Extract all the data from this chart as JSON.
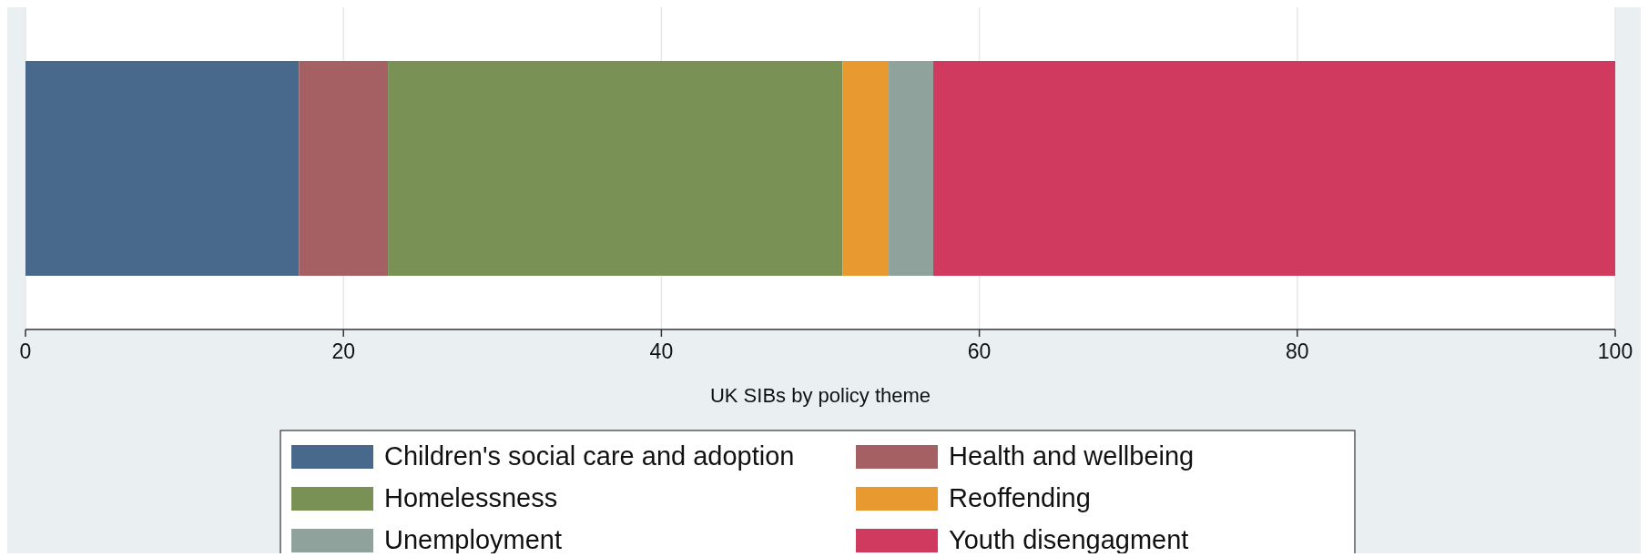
{
  "chart_data": {
    "type": "bar",
    "orientation": "horizontal",
    "stacked": true,
    "categories": [
      null
    ],
    "xlabel": "UK SIBs by policy theme",
    "xlim": [
      0,
      100
    ],
    "xticks": [
      0,
      20,
      40,
      60,
      80,
      100
    ],
    "grid": "x",
    "legend": "bottom",
    "series": [
      {
        "name": "Children's social care and adoption",
        "color": "#48698c",
        "values": [
          17.2
        ]
      },
      {
        "name": "Health and wellbeing",
        "color": "#a56063",
        "values": [
          5.6
        ]
      },
      {
        "name": "Homelessness",
        "color": "#7a9156",
        "values": [
          28.6
        ]
      },
      {
        "name": "Reoffending",
        "color": "#e8992f",
        "values": [
          2.9
        ]
      },
      {
        "name": "Unemployment",
        "color": "#8fa39c",
        "values": [
          2.8
        ]
      },
      {
        "name": "Youth disengagment",
        "color": "#cf3a5e",
        "values": [
          42.9
        ]
      }
    ]
  }
}
